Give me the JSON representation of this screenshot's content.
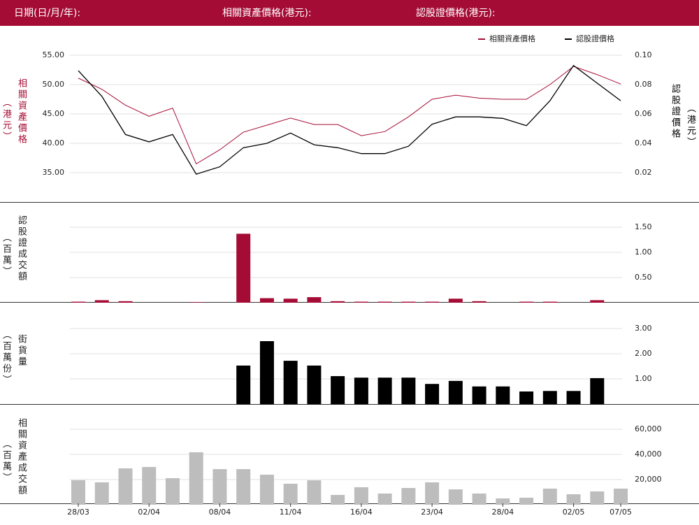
{
  "header": {
    "date_label": "日期(日/月/年):",
    "underlying_label": "相關資產價格(港元):",
    "warrant_label": "認股證價格(港元):"
  },
  "chart_data": [
    {
      "type": "line",
      "legend": "top-right",
      "grid": true,
      "y_label": "相關資產價格",
      "y_label_unit": "（港元）",
      "y2_label": "認股證價格",
      "y2_label_unit": "（港元）",
      "ylim": [
        30,
        55
      ],
      "yticks": [
        {
          "value": 35,
          "label": "35.00"
        },
        {
          "value": 40,
          "label": "40.00"
        },
        {
          "value": 45,
          "label": "45.00"
        },
        {
          "value": 50,
          "label": "50.00"
        },
        {
          "value": 55,
          "label": "55.00"
        }
      ],
      "y2lim": [
        0,
        0.1
      ],
      "y2ticks": [
        {
          "value": 0.02,
          "label": "0.02"
        },
        {
          "value": 0.04,
          "label": "0.04"
        },
        {
          "value": 0.06,
          "label": "0.06"
        },
        {
          "value": 0.08,
          "label": "0.08"
        },
        {
          "value": 0.1,
          "label": "0.10"
        }
      ],
      "series": [
        {
          "name": "相關資產價格",
          "color": "#a50c35",
          "values": [
            51.1,
            49.2,
            46.5,
            44.6,
            46.0,
            36.5,
            38.9,
            41.9,
            43.1,
            44.3,
            43.2,
            43.2,
            41.3,
            42.0,
            44.5,
            47.5,
            48.2,
            47.7,
            47.5,
            47.5,
            50.0,
            53.1,
            51.7,
            50.1
          ]
        },
        {
          "name": "認股證價格",
          "color": "#000000",
          "axis": "y2",
          "values": [
            0.0895,
            0.072,
            0.046,
            0.041,
            0.046,
            0.019,
            0.024,
            0.037,
            0.04,
            0.047,
            0.039,
            0.037,
            0.033,
            0.033,
            0.038,
            0.053,
            0.058,
            0.058,
            0.057,
            0.052,
            0.069,
            0.093,
            0.081,
            0.069
          ]
        }
      ]
    },
    {
      "type": "bar",
      "grid": true,
      "color": "#a50c35",
      "y_label": "認股證成交額",
      "y_label_unit": "（百萬）",
      "ylim": [
        0,
        2
      ],
      "yticks": [
        {
          "value": 0.5,
          "label": "0.50"
        },
        {
          "value": 1,
          "label": "1.00"
        },
        {
          "value": 1.5,
          "label": "1.50"
        }
      ],
      "values": [
        0.02,
        0.05,
        0.03,
        0,
        0,
        0.01,
        0,
        1.37,
        0.09,
        0.08,
        0.11,
        0.03,
        0.02,
        0.02,
        0.02,
        0.02,
        0.08,
        0.03,
        0,
        0.02,
        0.02,
        0,
        0.05,
        0
      ]
    },
    {
      "type": "bar",
      "grid": true,
      "color": "#000000",
      "y_label": "街貨量",
      "y_label_unit": "（百萬份）",
      "ylim": [
        0,
        4
      ],
      "yticks": [
        {
          "value": 1,
          "label": "1.00"
        },
        {
          "value": 2,
          "label": "2.00"
        },
        {
          "value": 3,
          "label": "3.00"
        }
      ],
      "values": [
        0,
        0,
        0,
        0,
        0,
        0,
        0,
        1.53,
        2.5,
        1.72,
        1.53,
        1.11,
        1.05,
        1.05,
        1.05,
        0.8,
        0.92,
        0.7,
        0.7,
        0.5,
        0.52,
        0.52,
        1.03,
        0
      ]
    },
    {
      "type": "bar",
      "grid": true,
      "color": "#bdbdbd",
      "y_label": "相關資產成交額",
      "y_label_unit": "（百萬）",
      "ylim": [
        0,
        80000
      ],
      "yticks": [
        {
          "value": 20000,
          "label": "20,000"
        },
        {
          "value": 40000,
          "label": "40,000"
        },
        {
          "value": 60000,
          "label": "60,000"
        }
      ],
      "categories": [
        "28/03",
        null,
        null,
        "02/04",
        null,
        null,
        "08/04",
        null,
        null,
        "11/04",
        null,
        null,
        "16/04",
        null,
        null,
        "23/04",
        null,
        null,
        "28/04",
        null,
        null,
        "02/05",
        null,
        "07/05"
      ],
      "values": [
        19500,
        17800,
        28900,
        30000,
        21100,
        41700,
        28300,
        28300,
        23900,
        16700,
        19400,
        7800,
        13900,
        8900,
        13300,
        17800,
        12200,
        8900,
        5000,
        5600,
        12800,
        8300,
        10600,
        12800
      ]
    }
  ]
}
